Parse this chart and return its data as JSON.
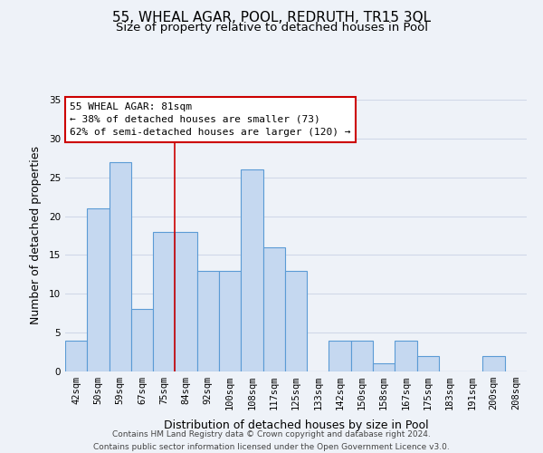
{
  "title": "55, WHEAL AGAR, POOL, REDRUTH, TR15 3QL",
  "subtitle": "Size of property relative to detached houses in Pool",
  "xlabel": "Distribution of detached houses by size in Pool",
  "ylabel": "Number of detached properties",
  "bar_labels": [
    "42sqm",
    "50sqm",
    "59sqm",
    "67sqm",
    "75sqm",
    "84sqm",
    "92sqm",
    "100sqm",
    "108sqm",
    "117sqm",
    "125sqm",
    "133sqm",
    "142sqm",
    "150sqm",
    "158sqm",
    "167sqm",
    "175sqm",
    "183sqm",
    "191sqm",
    "200sqm",
    "208sqm"
  ],
  "bar_values": [
    4,
    21,
    27,
    8,
    18,
    18,
    13,
    13,
    26,
    16,
    13,
    0,
    4,
    4,
    1,
    4,
    2,
    0,
    0,
    2,
    0
  ],
  "bar_color": "#c5d8f0",
  "bar_edge_color": "#5b9bd5",
  "marker_line_index": 5,
  "annotation_title": "55 WHEAL AGAR: 81sqm",
  "annotation_line1": "← 38% of detached houses are smaller (73)",
  "annotation_line2": "62% of semi-detached houses are larger (120) →",
  "annotation_box_color": "#ffffff",
  "annotation_box_edge": "#cc0000",
  "marker_line_color": "#cc0000",
  "ylim": [
    0,
    35
  ],
  "yticks": [
    0,
    5,
    10,
    15,
    20,
    25,
    30,
    35
  ],
  "footer_line1": "Contains HM Land Registry data © Crown copyright and database right 2024.",
  "footer_line2": "Contains public sector information licensed under the Open Government Licence v3.0.",
  "bg_color": "#eef2f8",
  "grid_color": "#d0d8e8",
  "title_fontsize": 11,
  "subtitle_fontsize": 9.5,
  "axis_label_fontsize": 9,
  "tick_fontsize": 7.5,
  "footer_fontsize": 6.5
}
